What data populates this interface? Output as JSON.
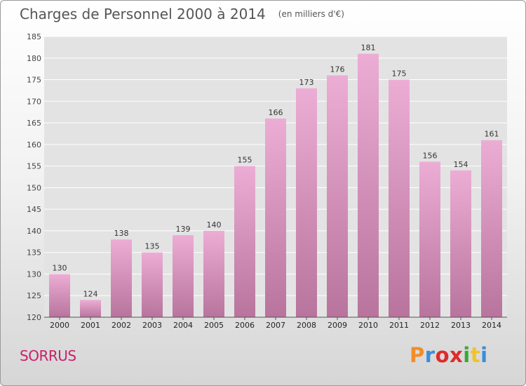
{
  "title": "Charges de Personnel 2000 à 2014",
  "subtitle": "(en milliers d'€)",
  "place": "SORRUS",
  "logo": "Proxiti",
  "colors": {
    "bar_top": "#ecadd5",
    "bar_bottom": "#b8749c",
    "place": "#c8216a",
    "logo": [
      "#f28c28",
      "#3a8fd8",
      "#e02a2a",
      "#e02a2a",
      "#3aa83a",
      "#f2c228",
      "#3a8fd8"
    ]
  },
  "chart_data": {
    "type": "bar",
    "title": "Charges de Personnel 2000 à 2014",
    "subtitle": "(en milliers d'€)",
    "categories": [
      "2000",
      "2001",
      "2002",
      "2003",
      "2004",
      "2005",
      "2006",
      "2007",
      "2008",
      "2009",
      "2010",
      "2011",
      "2012",
      "2013",
      "2014"
    ],
    "values": [
      130,
      124,
      138,
      135,
      139,
      140,
      155,
      166,
      173,
      176,
      181,
      175,
      156,
      154,
      161
    ],
    "ylim": [
      120,
      185
    ],
    "yticks": [
      120,
      125,
      130,
      135,
      140,
      145,
      150,
      155,
      160,
      165,
      170,
      175,
      180,
      185
    ],
    "grid": true
  }
}
